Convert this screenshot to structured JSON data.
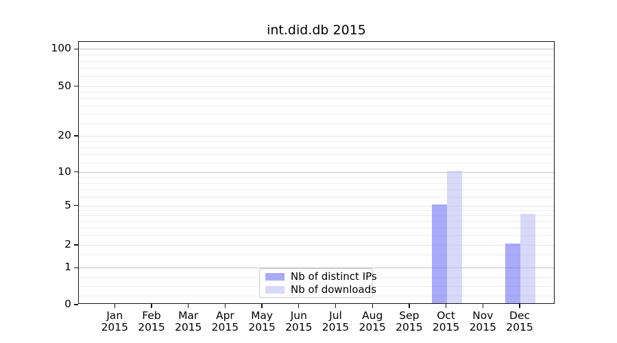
{
  "chart_data": {
    "type": "bar",
    "title": "int.did.db 2015",
    "categories": [
      "Jan",
      "Feb",
      "Mar",
      "Apr",
      "May",
      "Jun",
      "Jul",
      "Aug",
      "Sep",
      "Oct",
      "Nov",
      "Dec"
    ],
    "x_year_label": "2015",
    "series": [
      {
        "name": "Nb of distinct IPs",
        "color": "#7073f3",
        "alpha": 0.6,
        "values": [
          0,
          0,
          0,
          0,
          0,
          0,
          0,
          0,
          0,
          5,
          0,
          2
        ]
      },
      {
        "name": "Nb of downloads",
        "color": "#bebef3",
        "alpha": 0.6,
        "values": [
          0,
          0,
          0,
          0,
          0,
          0,
          0,
          0,
          0,
          10,
          0,
          4
        ]
      }
    ],
    "y_axis": {
      "tick_values": [
        100,
        50,
        20,
        10,
        5,
        2,
        1,
        0
      ],
      "tick_labels": [
        "100",
        "50",
        "20",
        "10",
        "5",
        "2",
        "1",
        "0"
      ],
      "minor_gridline_values": [
        90,
        80,
        70,
        60,
        45,
        40,
        35,
        30,
        25,
        18,
        16,
        14,
        12,
        9,
        8,
        7,
        6,
        4.5,
        4,
        3.5,
        3,
        2.5,
        1.5,
        0.75,
        0.5,
        0.25
      ],
      "decade_gridline_values": [
        100,
        10,
        1
      ],
      "scale": "log-like above 1, linear between 0 and 1",
      "range": [
        0,
        115
      ]
    },
    "legend": {
      "position": "lower center",
      "entries": [
        "Nb of distinct IPs",
        "Nb of downloads"
      ]
    },
    "grid": "both",
    "colors": {
      "bar_distinct_ips_rendered": "#a9abf8",
      "bar_downloads_rendered": "#d8d8f8",
      "gridline_decade": "#c3c3c3",
      "gridline_minor": "#ececec",
      "axis": "#121212"
    }
  }
}
